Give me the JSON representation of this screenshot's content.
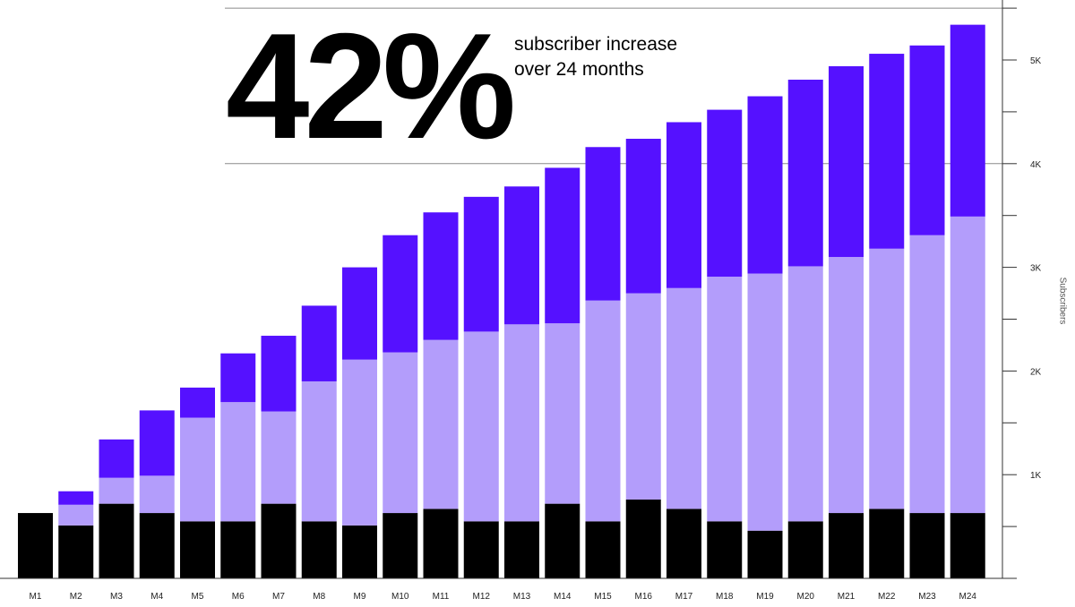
{
  "headline": {
    "value": "42%",
    "line1": "subscriber increase",
    "line2": "over 24 months"
  },
  "chart_data": {
    "type": "bar",
    "stacked": true,
    "categories": [
      "M1",
      "M2",
      "M3",
      "M4",
      "M5",
      "M6",
      "M7",
      "M8",
      "M9",
      "M10",
      "M11",
      "M12",
      "M13",
      "M14",
      "M15",
      "M16",
      "M17",
      "M18",
      "M19",
      "M20",
      "M21",
      "M22",
      "M23",
      "M24"
    ],
    "series": [
      {
        "color": "#000000",
        "values": [
          630,
          510,
          720,
          630,
          550,
          550,
          720,
          550,
          510,
          630,
          670,
          550,
          550,
          720,
          550,
          760,
          670,
          550,
          460,
          550,
          630,
          670,
          630,
          630
        ]
      },
      {
        "color": "#B39DFB",
        "values": [
          0,
          200,
          250,
          360,
          1000,
          1150,
          890,
          1350,
          1600,
          1550,
          1630,
          1830,
          1900,
          1740,
          2130,
          1990,
          2130,
          2360,
          2480,
          2460,
          2470,
          2510,
          2680,
          2860
        ]
      },
      {
        "color": "#5511FF",
        "values": [
          0,
          130,
          370,
          630,
          290,
          470,
          730,
          730,
          890,
          1130,
          1230,
          1300,
          1330,
          1500,
          1480,
          1490,
          1600,
          1610,
          1710,
          1800,
          1840,
          1880,
          1830,
          1850
        ]
      }
    ],
    "ylabel": "Subscribers",
    "ylim": [
      0,
      5500
    ],
    "ytick_labels": [
      "1K",
      "2K",
      "3K",
      "4K",
      "5K"
    ],
    "ytick_values": [
      1000,
      2000,
      3000,
      4000,
      5000
    ],
    "y_axis_position": "right",
    "gridlines": [
      4000,
      5500
    ]
  }
}
